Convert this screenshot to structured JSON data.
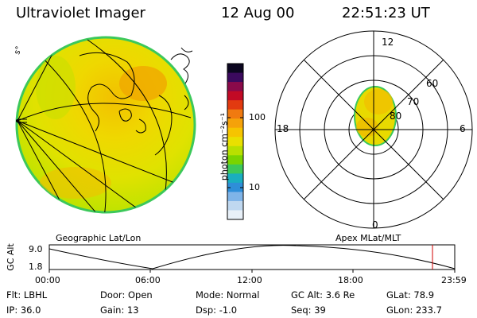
{
  "header": {
    "instrument": "Ultraviolet Imager",
    "date": "12 Aug 00",
    "time": "22:51:23 UT"
  },
  "geo_panel": {
    "label": "Geographic Lat/Lon",
    "corner_label": "s°"
  },
  "colorbar": {
    "unit_label": "photon cm⁻²s⁻¹",
    "ticks": [
      "100",
      "10"
    ],
    "colors": [
      "#0b0620",
      "#3b0a5e",
      "#8a0a4a",
      "#c20a25",
      "#e23a10",
      "#f07a10",
      "#f5a20a",
      "#f6c400",
      "#e9e000",
      "#b8e000",
      "#7ad400",
      "#3cc85a",
      "#1aaec0",
      "#2e8ed8",
      "#7fb4e8",
      "#c0d8f0",
      "#e8f0f8"
    ]
  },
  "polar_plot": {
    "label": "Apex MLat/MLT",
    "mlt_labels": {
      "top": "12",
      "left": "18",
      "right": "6",
      "bottom": "0"
    },
    "mlat_labels": [
      "60",
      "70",
      "80"
    ]
  },
  "altitude_strip": {
    "ylabel": "GC Alt",
    "y_ticks": [
      "9.0",
      "1.8"
    ],
    "x_ticks": [
      "00:00",
      "06:00",
      "12:00",
      "18:00",
      "23:59"
    ],
    "marker_time": "22:51"
  },
  "status": {
    "row1": [
      {
        "label": "Flt:",
        "value": "LBHL"
      },
      {
        "label": "Door:",
        "value": "Open"
      },
      {
        "label": "Mode:",
        "value": "Normal"
      },
      {
        "label": "GC Alt:",
        "value": "3.6 Re"
      },
      {
        "label": "GLat:",
        "value": "78.9"
      }
    ],
    "row2": [
      {
        "label": "IP:",
        "value": "36.0"
      },
      {
        "label": "Gain:",
        "value": "13"
      },
      {
        "label": "Dsp:",
        "value": "-1.0"
      },
      {
        "label": "Seq:",
        "value": "39"
      },
      {
        "label": "GLon:",
        "value": "233.7"
      }
    ]
  }
}
